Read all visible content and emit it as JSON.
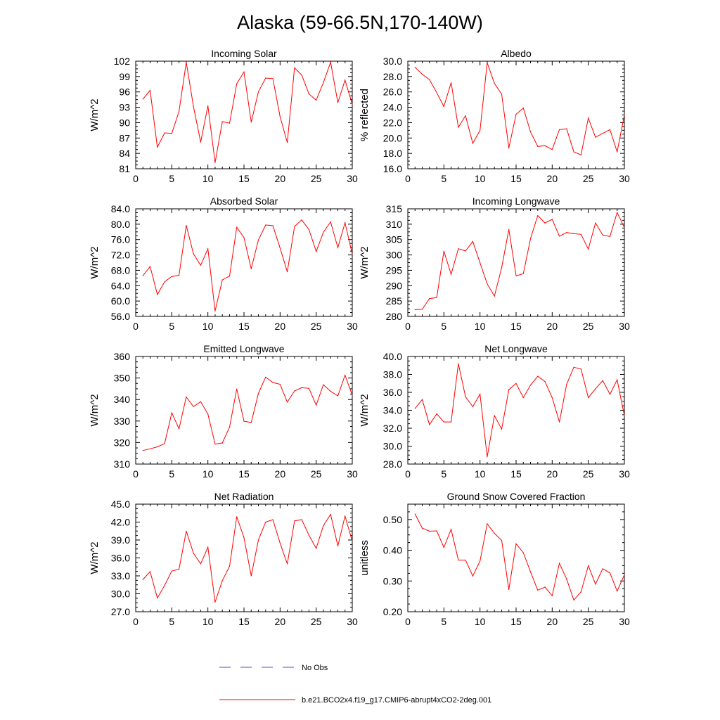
{
  "title": "Alaska (59-66.5N,170-140W)",
  "legend": {
    "entries": [
      {
        "label": "No Obs",
        "style": "dashed",
        "color": "#4a56c6"
      },
      {
        "label": "b.e21.BCO2x4.f19_g17.CMIP6-abrupt4xCO2-2deg.001",
        "style": "solid",
        "color": "#ff0000"
      }
    ]
  },
  "chart_data": [
    {
      "type": "line",
      "title": "Incoming Solar",
      "ylabel": "W/m^2",
      "xlim": [
        0,
        30
      ],
      "ylim": [
        81,
        102
      ],
      "xticks": [
        "0",
        "5",
        "10",
        "15",
        "20",
        "25",
        "30"
      ],
      "yticks": [
        "81",
        "84",
        "87",
        "90",
        "93",
        "96",
        "99",
        "102"
      ],
      "series": [
        {
          "name": "b.e21.BCO2x4.f19_g17.CMIP6-abrupt4xCO2-2deg.001",
          "color": "#ff0000",
          "x": [
            1,
            2,
            3,
            4,
            5,
            6,
            7,
            8,
            9,
            10,
            11,
            12,
            13,
            14,
            15,
            16,
            17,
            18,
            19,
            20,
            21,
            22,
            23,
            24,
            25,
            26,
            27,
            28,
            29,
            30
          ],
          "values": [
            94.6,
            96.3,
            85.2,
            88.0,
            87.9,
            92.2,
            101.8,
            93.2,
            86.2,
            93.3,
            82.2,
            90.2,
            89.9,
            97.6,
            99.9,
            90.1,
            96.0,
            98.7,
            98.6,
            91.2,
            86.1,
            100.7,
            99.3,
            95.6,
            94.4,
            97.8,
            101.8,
            93.9,
            98.3,
            93.6
          ]
        }
      ]
    },
    {
      "type": "line",
      "title": "Albedo",
      "ylabel": "% reflected",
      "xlim": [
        0,
        30
      ],
      "ylim": [
        16.0,
        30.0
      ],
      "xticks": [
        "0",
        "5",
        "10",
        "15",
        "20",
        "25",
        "30"
      ],
      "yticks": [
        "16.0",
        "18.0",
        "20.0",
        "22.0",
        "24.0",
        "26.0",
        "28.0",
        "30.0"
      ],
      "series": [
        {
          "name": "b.e21.BCO2x4.f19_g17.CMIP6-abrupt4xCO2-2deg.001",
          "color": "#ff0000",
          "x": [
            1,
            2,
            3,
            4,
            5,
            6,
            7,
            8,
            9,
            10,
            11,
            12,
            13,
            14,
            15,
            16,
            17,
            18,
            19,
            20,
            21,
            22,
            23,
            24,
            25,
            26,
            27,
            28,
            29,
            30
          ],
          "values": [
            29.2,
            28.3,
            27.6,
            25.9,
            24.1,
            27.2,
            21.4,
            22.9,
            19.3,
            21.0,
            29.8,
            27.1,
            25.7,
            18.7,
            23.1,
            23.9,
            20.8,
            18.9,
            19.0,
            18.5,
            21.1,
            21.2,
            18.2,
            17.8,
            22.6,
            20.1,
            20.6,
            21.1,
            18.2,
            23.0
          ]
        }
      ]
    },
    {
      "type": "line",
      "title": "Absorbed Solar",
      "ylabel": "W/m^2",
      "xlim": [
        0,
        30
      ],
      "ylim": [
        56.0,
        84.0
      ],
      "xticks": [
        "0",
        "5",
        "10",
        "15",
        "20",
        "25",
        "30"
      ],
      "yticks": [
        "56.0",
        "60.0",
        "64.0",
        "68.0",
        "72.0",
        "76.0",
        "80.0",
        "84.0"
      ],
      "series": [
        {
          "name": "b.e21.BCO2x4.f19_g17.CMIP6-abrupt4xCO2-2deg.001",
          "color": "#ff0000",
          "x": [
            1,
            2,
            3,
            4,
            5,
            6,
            7,
            8,
            9,
            10,
            11,
            12,
            13,
            14,
            15,
            16,
            17,
            18,
            19,
            20,
            21,
            22,
            23,
            24,
            25,
            26,
            27,
            28,
            29,
            30
          ],
          "values": [
            66.6,
            69.0,
            61.7,
            65.0,
            66.4,
            66.7,
            79.7,
            72.3,
            69.3,
            73.6,
            57.4,
            65.5,
            66.5,
            79.2,
            76.5,
            68.4,
            75.9,
            79.8,
            79.6,
            73.8,
            67.6,
            79.4,
            81.1,
            78.6,
            72.9,
            77.9,
            80.6,
            73.9,
            80.4,
            72.2
          ]
        }
      ]
    },
    {
      "type": "line",
      "title": "Incoming Longwave",
      "ylabel": "W/m^2",
      "xlim": [
        0,
        30
      ],
      "ylim": [
        280,
        315
      ],
      "xticks": [
        "0",
        "5",
        "10",
        "15",
        "20",
        "25",
        "30"
      ],
      "yticks": [
        "280",
        "285",
        "290",
        "295",
        "300",
        "305",
        "310",
        "315"
      ],
      "series": [
        {
          "name": "b.e21.BCO2x4.f19_g17.CMIP6-abrupt4xCO2-2deg.001",
          "color": "#ff0000",
          "x": [
            1,
            2,
            3,
            4,
            5,
            6,
            7,
            8,
            9,
            10,
            11,
            12,
            13,
            14,
            15,
            16,
            17,
            18,
            19,
            20,
            21,
            22,
            23,
            24,
            25,
            26,
            27,
            28,
            29,
            30
          ],
          "values": [
            282.2,
            282.3,
            285.8,
            286.1,
            301.2,
            293.7,
            302.0,
            301.3,
            304.4,
            297.4,
            290.6,
            286.6,
            295.9,
            308.3,
            293.2,
            293.9,
            305.3,
            312.8,
            310.4,
            311.6,
            306.1,
            307.3,
            306.9,
            306.7,
            301.9,
            310.4,
            306.5,
            306.0,
            313.8,
            308.9
          ]
        }
      ]
    },
    {
      "type": "line",
      "title": "Emitted Longwave",
      "ylabel": "W/m^2",
      "xlim": [
        0,
        30
      ],
      "ylim": [
        310,
        360
      ],
      "xticks": [
        "0",
        "5",
        "10",
        "15",
        "20",
        "25",
        "30"
      ],
      "yticks": [
        "310",
        "320",
        "330",
        "340",
        "350",
        "360"
      ],
      "series": [
        {
          "name": "b.e21.BCO2x4.f19_g17.CMIP6-abrupt4xCO2-2deg.001",
          "color": "#ff0000",
          "x": [
            1,
            2,
            3,
            4,
            5,
            6,
            7,
            8,
            9,
            10,
            11,
            12,
            13,
            14,
            15,
            16,
            17,
            18,
            19,
            20,
            21,
            22,
            23,
            24,
            25,
            26,
            27,
            28,
            29,
            30
          ],
          "values": [
            316.3,
            317.1,
            318.0,
            319.5,
            333.8,
            326.4,
            341.2,
            336.7,
            339.0,
            333.2,
            319.3,
            319.8,
            327.2,
            344.9,
            329.9,
            329.3,
            342.8,
            350.4,
            347.9,
            347.1,
            338.8,
            344.0,
            345.5,
            345.2,
            337.4,
            346.9,
            343.8,
            341.7,
            351.3,
            342.0
          ]
        }
      ]
    },
    {
      "type": "line",
      "title": "Net Longwave",
      "ylabel": "W/m^2",
      "xlim": [
        0,
        30
      ],
      "ylim": [
        28.0,
        40.0
      ],
      "xticks": [
        "0",
        "5",
        "10",
        "15",
        "20",
        "25",
        "30"
      ],
      "yticks": [
        "28.0",
        "30.0",
        "32.0",
        "34.0",
        "36.0",
        "38.0",
        "40.0"
      ],
      "series": [
        {
          "name": "b.e21.BCO2x4.f19_g17.CMIP6-abrupt4xCO2-2deg.001",
          "color": "#ff0000",
          "x": [
            1,
            2,
            3,
            4,
            5,
            6,
            7,
            8,
            9,
            10,
            11,
            12,
            13,
            14,
            15,
            16,
            17,
            18,
            19,
            20,
            21,
            22,
            23,
            24,
            25,
            26,
            27,
            28,
            29,
            30
          ],
          "values": [
            34.2,
            35.2,
            32.4,
            33.6,
            32.7,
            32.7,
            39.2,
            35.5,
            34.4,
            35.8,
            28.8,
            33.4,
            31.9,
            36.3,
            37.0,
            35.4,
            36.8,
            37.8,
            37.2,
            35.4,
            32.7,
            36.9,
            38.8,
            38.6,
            35.4,
            36.4,
            37.3,
            35.8,
            37.4,
            33.4
          ]
        }
      ]
    },
    {
      "type": "line",
      "title": "Net Radiation",
      "ylabel": "W/m^2",
      "xlim": [
        0,
        30
      ],
      "ylim": [
        27.0,
        45.0
      ],
      "xticks": [
        "0",
        "5",
        "10",
        "15",
        "20",
        "25",
        "30"
      ],
      "yticks": [
        "27.0",
        "30.0",
        "33.0",
        "36.0",
        "39.0",
        "42.0",
        "45.0"
      ],
      "series": [
        {
          "name": "b.e21.BCO2x4.f19_g17.CMIP6-abrupt4xCO2-2deg.001",
          "color": "#ff0000",
          "x": [
            1,
            2,
            3,
            4,
            5,
            6,
            7,
            8,
            9,
            10,
            11,
            12,
            13,
            14,
            15,
            16,
            17,
            18,
            19,
            20,
            21,
            22,
            23,
            24,
            25,
            26,
            27,
            28,
            29,
            30
          ],
          "values": [
            32.4,
            33.7,
            29.3,
            31.4,
            33.8,
            34.1,
            40.5,
            36.8,
            35.0,
            37.8,
            28.6,
            32.2,
            34.6,
            42.9,
            39.4,
            33.0,
            39.0,
            42.0,
            42.4,
            38.5,
            35.0,
            42.2,
            42.4,
            39.8,
            37.6,
            41.4,
            43.3,
            38.0,
            43.0,
            38.8
          ]
        }
      ]
    },
    {
      "type": "line",
      "title": "Ground Snow Covered Fraction",
      "ylabel": "unitless",
      "xlim": [
        0,
        30
      ],
      "ylim": [
        0.2,
        0.55
      ],
      "xticks": [
        "0",
        "5",
        "10",
        "15",
        "20",
        "25",
        "30"
      ],
      "yticks": [
        "0.20",
        "0.30",
        "0.40",
        "0.50"
      ],
      "series": [
        {
          "name": "b.e21.BCO2x4.f19_g17.CMIP6-abrupt4xCO2-2deg.001",
          "color": "#ff0000",
          "x": [
            1,
            2,
            3,
            4,
            5,
            6,
            7,
            8,
            9,
            10,
            11,
            12,
            13,
            14,
            15,
            16,
            17,
            18,
            19,
            20,
            21,
            22,
            23,
            24,
            25,
            26,
            27,
            28,
            29,
            30
          ],
          "values": [
            0.518,
            0.472,
            0.462,
            0.463,
            0.409,
            0.468,
            0.368,
            0.368,
            0.316,
            0.365,
            0.486,
            0.455,
            0.432,
            0.272,
            0.421,
            0.392,
            0.33,
            0.27,
            0.28,
            0.252,
            0.358,
            0.306,
            0.238,
            0.265,
            0.35,
            0.29,
            0.34,
            0.326,
            0.267,
            0.32
          ]
        }
      ]
    }
  ]
}
